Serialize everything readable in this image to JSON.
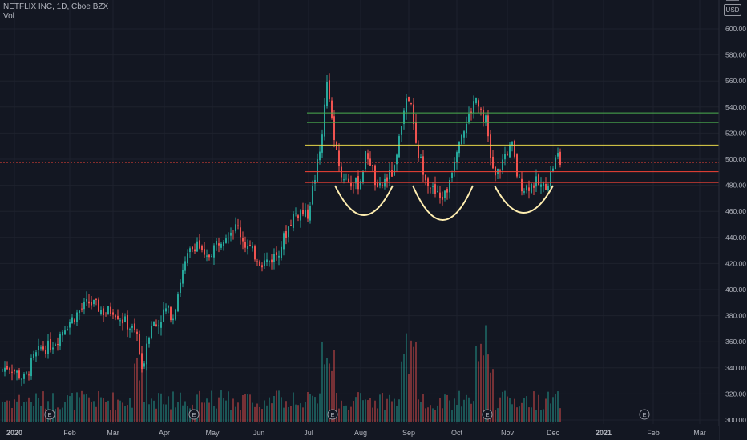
{
  "header": {
    "title": "NETFLIX INC, 1D, Cboe BZX",
    "indicator": "Vol"
  },
  "currency": "USD",
  "colors": {
    "background": "#131722",
    "up": "#26a69a",
    "down": "#ef5350",
    "grid": "#1e222d",
    "axis_text": "#b2b5be",
    "green_line": "#4caf50",
    "yellow_line": "#e6d74a",
    "red_line": "#f44336",
    "arc": "#ffeeb0"
  },
  "chart_data": {
    "type": "candlestick",
    "title": "NETFLIX INC, 1D, Cboe BZX",
    "ylim": [
      300,
      620
    ],
    "y_ticks": [
      300,
      320,
      340,
      360,
      380,
      400,
      420,
      440,
      460,
      480,
      500,
      520,
      540,
      560,
      580,
      600
    ],
    "x_labels": [
      "2020",
      "Feb",
      "Mar",
      "Apr",
      "May",
      "Jun",
      "Jul",
      "Aug",
      "Sep",
      "Oct",
      "Nov",
      "Dec",
      "2021",
      "Feb",
      "Mar"
    ],
    "earnings_markers": [
      "Jan",
      "Apr",
      "Jul",
      "Oct",
      "Jan"
    ],
    "earnings_label": "E",
    "horizontal_levels": [
      {
        "value": 535.52,
        "label": "535.52",
        "color": "green"
      },
      {
        "value": 528.11,
        "label": "528.11",
        "color": "green"
      },
      {
        "value": 510.79,
        "label": "510.79",
        "color": "yellow"
      },
      {
        "value": 497.52,
        "label": "497.52",
        "color": "red",
        "current_price": true
      },
      {
        "value": 490.44,
        "label": "490.44",
        "color": "red"
      },
      {
        "value": 482.11,
        "label": "482.11",
        "color": "red"
      }
    ],
    "pattern": "three rounded bottoms (arcs) below the 482-490 support zone",
    "approx_path": [
      [
        0,
        338
      ],
      [
        10,
        342
      ],
      [
        20,
        336
      ],
      [
        30,
        331
      ],
      [
        40,
        346
      ],
      [
        50,
        355
      ],
      [
        60,
        356
      ],
      [
        70,
        362
      ],
      [
        80,
        372
      ],
      [
        90,
        378
      ],
      [
        100,
        385
      ],
      [
        110,
        390
      ],
      [
        120,
        387
      ],
      [
        130,
        382
      ],
      [
        140,
        385
      ],
      [
        150,
        378
      ],
      [
        160,
        372
      ],
      [
        170,
        365
      ],
      [
        176,
        335
      ],
      [
        182,
        360
      ],
      [
        188,
        375
      ],
      [
        195,
        372
      ],
      [
        205,
        385
      ],
      [
        215,
        380
      ],
      [
        225,
        410
      ],
      [
        235,
        428
      ],
      [
        245,
        437
      ],
      [
        255,
        421
      ],
      [
        265,
        432
      ],
      [
        275,
        440
      ],
      [
        285,
        445
      ],
      [
        295,
        448
      ],
      [
        305,
        435
      ],
      [
        315,
        428
      ],
      [
        325,
        421
      ],
      [
        335,
        422
      ],
      [
        345,
        428
      ],
      [
        355,
        442
      ],
      [
        365,
        457
      ],
      [
        375,
        460
      ],
      [
        382,
        455
      ],
      [
        390,
        480
      ],
      [
        398,
        505
      ],
      [
        404,
        540
      ],
      [
        408,
        565
      ],
      [
        412,
        535
      ],
      [
        418,
        505
      ],
      [
        425,
        488
      ],
      [
        432,
        485
      ],
      [
        440,
        480
      ],
      [
        448,
        482
      ],
      [
        456,
        505
      ],
      [
        462,
        497
      ],
      [
        470,
        474
      ],
      [
        478,
        483
      ],
      [
        486,
        488
      ],
      [
        492,
        492
      ],
      [
        498,
        518
      ],
      [
        503,
        540
      ],
      [
        508,
        545
      ],
      [
        512,
        540
      ],
      [
        518,
        510
      ],
      [
        525,
        496
      ],
      [
        532,
        485
      ],
      [
        540,
        475
      ],
      [
        548,
        470
      ],
      [
        556,
        474
      ],
      [
        564,
        496
      ],
      [
        572,
        518
      ],
      [
        580,
        525
      ],
      [
        588,
        540
      ],
      [
        594,
        548
      ],
      [
        600,
        536
      ],
      [
        606,
        528
      ],
      [
        610,
        505
      ],
      [
        616,
        485
      ],
      [
        622,
        492
      ],
      [
        630,
        505
      ],
      [
        638,
        510
      ],
      [
        645,
        485
      ],
      [
        652,
        478
      ],
      [
        660,
        480
      ],
      [
        668,
        482
      ],
      [
        676,
        478
      ],
      [
        684,
        484
      ],
      [
        690,
        497
      ],
      [
        695,
        503
      ],
      [
        698,
        497
      ]
    ],
    "volume_profile": "tall volume bars near Mar, Jul, Sep-Oct and Nov; low baseline elsewhere"
  }
}
